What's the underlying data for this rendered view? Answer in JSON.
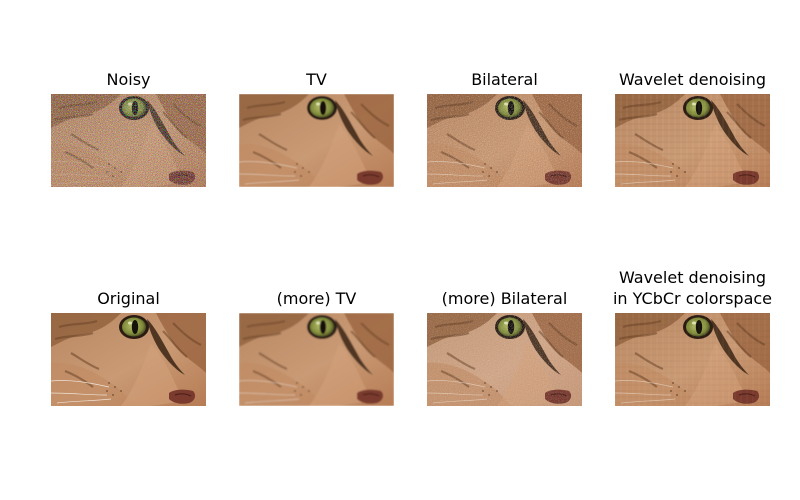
{
  "figure": {
    "panels": [
      {
        "title": "Noisy",
        "variant": "noisy"
      },
      {
        "title": "TV",
        "variant": "tv"
      },
      {
        "title": "Bilateral",
        "variant": "bilateral"
      },
      {
        "title": "Wavelet denoising",
        "variant": "wavelet"
      },
      {
        "title": "Original",
        "variant": "original"
      },
      {
        "title": "(more) TV",
        "variant": "more-tv"
      },
      {
        "title": "(more) Bilateral",
        "variant": "more-bilateral"
      },
      {
        "title": "Wavelet denoising\nin YCbCr colorspace",
        "variant": "wavelet-ycbcr"
      }
    ]
  }
}
